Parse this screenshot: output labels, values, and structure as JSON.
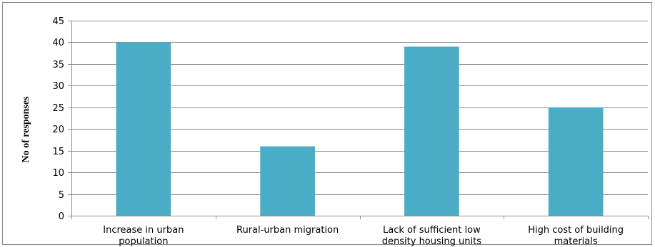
{
  "chart_data": {
    "type": "bar",
    "title": "",
    "xlabel": "",
    "ylabel": "No of responses",
    "ylim": [
      0,
      45
    ],
    "yticks": [
      0,
      5,
      10,
      15,
      20,
      25,
      30,
      35,
      40,
      45
    ],
    "grid": true,
    "bar_color": "#4bacc6",
    "categories": [
      [
        "Increase in urban",
        "population"
      ],
      [
        "Rural-urban migration"
      ],
      [
        "Lack of sufficient low",
        "density housing units"
      ],
      [
        "High cost of building",
        "materials"
      ]
    ],
    "values": [
      40,
      16,
      39,
      25
    ]
  }
}
